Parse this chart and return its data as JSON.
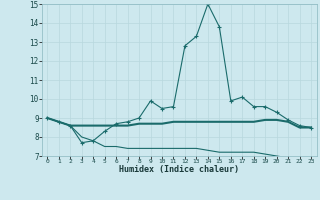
{
  "xlabel": "Humidex (Indice chaleur)",
  "xlim": [
    -0.5,
    23.5
  ],
  "ylim": [
    7,
    15
  ],
  "yticks": [
    7,
    8,
    9,
    10,
    11,
    12,
    13,
    14,
    15
  ],
  "xticks": [
    0,
    1,
    2,
    3,
    4,
    5,
    6,
    7,
    8,
    9,
    10,
    11,
    12,
    13,
    14,
    15,
    16,
    17,
    18,
    19,
    20,
    21,
    22,
    23
  ],
  "background_color": "#cde8ee",
  "line_color": "#1a6b6b",
  "grid_color": "#b8d8de",
  "line1_x": [
    0,
    1,
    2,
    3,
    4,
    5,
    6,
    7,
    8,
    9,
    10,
    11,
    12,
    13,
    14,
    15,
    16,
    17,
    18,
    19,
    20,
    21,
    22,
    23
  ],
  "line1_y": [
    9.0,
    8.8,
    8.6,
    7.7,
    7.8,
    8.3,
    8.7,
    8.8,
    9.0,
    9.9,
    9.5,
    9.6,
    12.8,
    13.3,
    15.0,
    13.8,
    9.9,
    10.1,
    9.6,
    9.6,
    9.3,
    8.9,
    8.6,
    8.5
  ],
  "line2_x": [
    0,
    1,
    2,
    3,
    4,
    5,
    6,
    7,
    8,
    9,
    10,
    11,
    12,
    13,
    14,
    15,
    16,
    17,
    18,
    19,
    20,
    21,
    22,
    23
  ],
  "line2_y": [
    9.0,
    8.8,
    8.6,
    8.6,
    8.6,
    8.6,
    8.6,
    8.6,
    8.7,
    8.7,
    8.7,
    8.8,
    8.8,
    8.8,
    8.8,
    8.8,
    8.8,
    8.8,
    8.8,
    8.9,
    8.9,
    8.8,
    8.5,
    8.5
  ],
  "line3_x": [
    0,
    1,
    2,
    3,
    4,
    5,
    6,
    7,
    8,
    9,
    10,
    11,
    12,
    13,
    14,
    15,
    16,
    17,
    18,
    19,
    20,
    21,
    22,
    23
  ],
  "line3_y": [
    9.0,
    8.8,
    8.6,
    8.0,
    7.8,
    7.5,
    7.5,
    7.4,
    7.4,
    7.4,
    7.4,
    7.4,
    7.4,
    7.4,
    7.3,
    7.2,
    7.2,
    7.2,
    7.2,
    7.1,
    7.0,
    6.9,
    6.9,
    6.9
  ]
}
